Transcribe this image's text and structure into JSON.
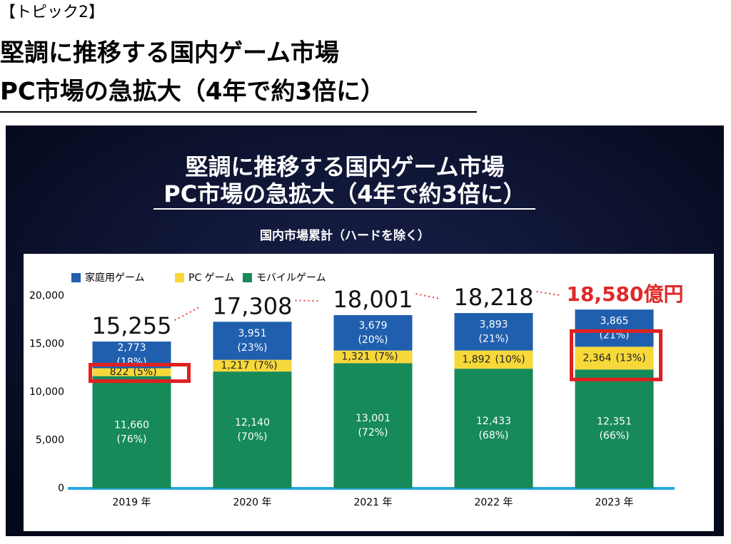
{
  "header": {
    "topic": "【トピック2】",
    "title_lines": [
      "堅調に推移する国内ゲーム市場",
      "PC市場の急拡大（4年で約3倍に）"
    ]
  },
  "chart_data": {
    "type": "stacked_bar",
    "title_lines": [
      "堅調に推移する国内ゲーム市場",
      "PC市場の急拡大（4年で約3倍に）"
    ],
    "subtitle": "国内市場累計（ハードを除く）",
    "categories": [
      "2019 年",
      "2020 年",
      "2021 年",
      "2022 年",
      "2023 年"
    ],
    "series": [
      {
        "name": "モバイルゲーム",
        "color": "#178a5a",
        "values": [
          11660,
          12140,
          13001,
          12433,
          12351
        ],
        "value_labels": [
          "11,660",
          "12,140",
          "13,001",
          "12,433",
          "12,351"
        ],
        "share_labels": [
          "(76%)",
          "(70%)",
          "(72%)",
          "(68%)",
          "(66%)"
        ]
      },
      {
        "name": "PC ゲーム",
        "color": "#f6d83a",
        "values": [
          822,
          1217,
          1321,
          1892,
          2364
        ],
        "value_labels": [
          "822",
          "1,217",
          "1,321",
          "1,892",
          "2,364"
        ],
        "share_labels": [
          "(5%)",
          "(7%)",
          "(7%)",
          "(10%)",
          "(13%)"
        ]
      },
      {
        "name": "家庭用ゲーム",
        "color": "#1f5fae",
        "values": [
          2773,
          3951,
          3679,
          3893,
          3865
        ],
        "value_labels": [
          "2,773",
          "3,951",
          "3,679",
          "3,893",
          "3,865"
        ],
        "share_labels": [
          "(18%)",
          "(23%)",
          "(20%)",
          "(21%)",
          "(21%)"
        ]
      }
    ],
    "totals": [
      15255,
      17308,
      18001,
      18218,
      18580
    ],
    "total_labels": [
      "15,255",
      "17,308",
      "18,001",
      "18,218",
      "18,580億円"
    ],
    "ylim": [
      0,
      20000
    ],
    "yticks": [
      0,
      {
        "value": 5000,
        "label": "5,000"
      },
      {
        "value": 10000,
        "label": "10,000"
      },
      {
        "value": 15000,
        "label": "15,000"
      },
      {
        "value": 20000,
        "label": "20,000"
      }
    ]
  }
}
